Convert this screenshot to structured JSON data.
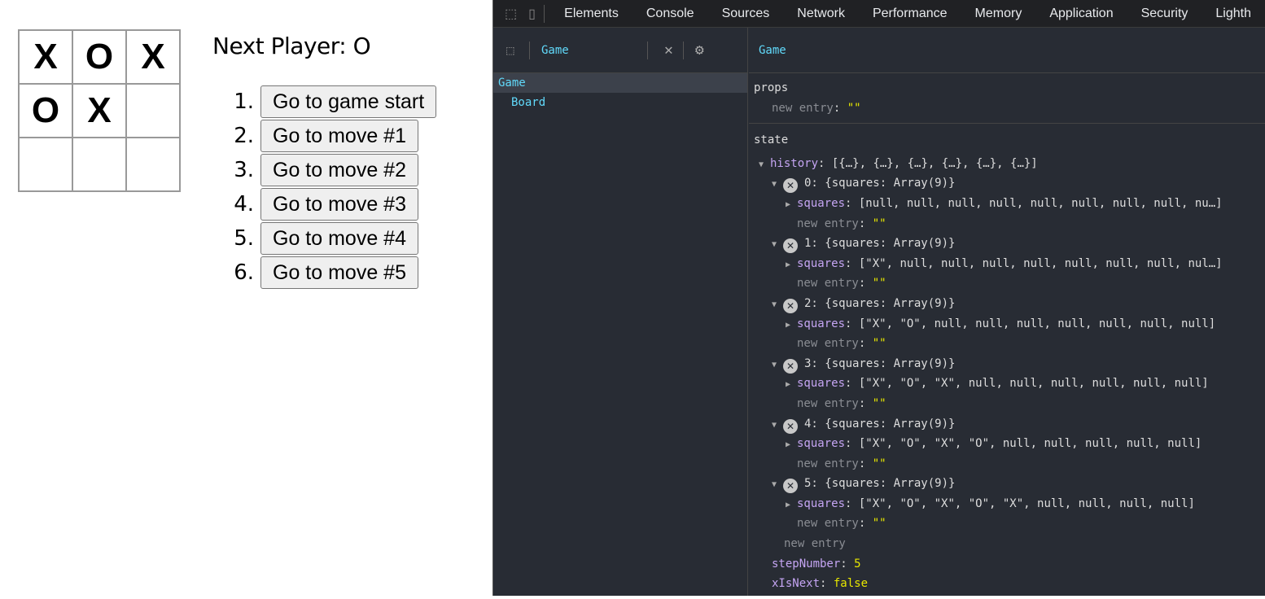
{
  "game": {
    "squares": [
      "X",
      "O",
      "X",
      "O",
      "X",
      "",
      "",
      "",
      ""
    ],
    "status": "Next Player: O",
    "moves": [
      {
        "num": "1.",
        "label": "Go to game start"
      },
      {
        "num": "2.",
        "label": "Go to move #1"
      },
      {
        "num": "3.",
        "label": "Go to move #2"
      },
      {
        "num": "4.",
        "label": "Go to move #3"
      },
      {
        "num": "5.",
        "label": "Go to move #4"
      },
      {
        "num": "6.",
        "label": "Go to move #5"
      }
    ]
  },
  "devtools": {
    "tabs": [
      "Elements",
      "Console",
      "Sources",
      "Network",
      "Performance",
      "Memory",
      "Application",
      "Security",
      "Lighth"
    ],
    "search_value": "Game",
    "tree": [
      "Game",
      "Board"
    ],
    "inspector_title": "Game",
    "props_label": "props",
    "state_label": "state",
    "new_entry": "new entry",
    "empty_value": "\"\"",
    "history_key": "history",
    "history_summary": "[{…}, {…}, {…}, {…}, {…}, {…}]",
    "squares_key": "squares",
    "history": [
      {
        "label": "0: {squares: Array(9)}",
        "squares": "[null, null, null, null, null, null, null, null, nu…]"
      },
      {
        "label": "1: {squares: Array(9)}",
        "squares": "[\"X\", null, null, null, null, null, null, null, nul…]"
      },
      {
        "label": "2: {squares: Array(9)}",
        "squares": "[\"X\", \"O\", null, null, null, null, null, null, null]"
      },
      {
        "label": "3: {squares: Array(9)}",
        "squares": "[\"X\", \"O\", \"X\", null, null, null, null, null, null]"
      },
      {
        "label": "4: {squares: Array(9)}",
        "squares": "[\"X\", \"O\", \"X\", \"O\", null, null, null, null, null]"
      },
      {
        "label": "5: {squares: Array(9)}",
        "squares": "[\"X\", \"O\", \"X\", \"O\", \"X\", null, null, null, null]"
      }
    ],
    "stepNumber_key": "stepNumber",
    "stepNumber": "5",
    "xIsNext_key": "xIsNext",
    "xIsNext": "false",
    "colors": {
      "bg": "#282c34",
      "component": "#61dafb",
      "key": "#c5a5f3",
      "string": "#e7e700"
    }
  }
}
